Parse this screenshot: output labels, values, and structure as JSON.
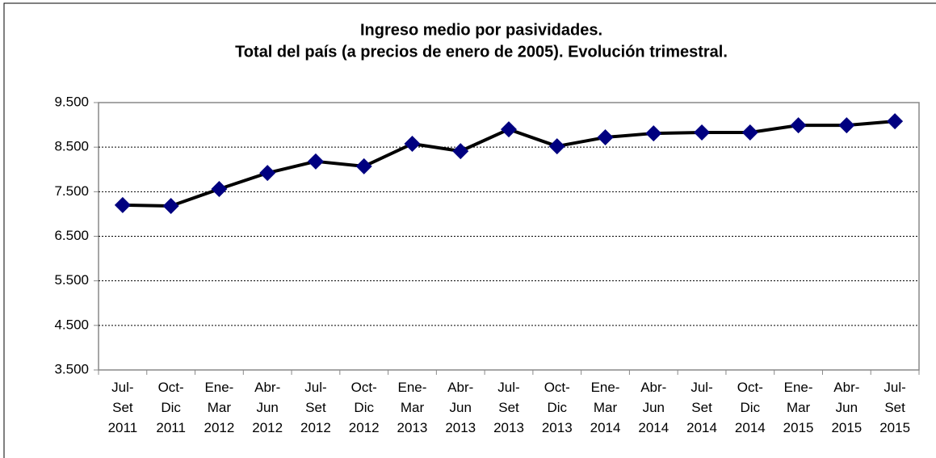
{
  "chart_data": {
    "type": "line",
    "title": [
      "Ingreso medio por pasividades.",
      "Total del país (a precios de enero de 2005). Evolución trimestral."
    ],
    "categories": [
      [
        "Jul-",
        "Set",
        "2011"
      ],
      [
        "Oct-",
        "Dic",
        "2011"
      ],
      [
        "Ene-",
        "Mar",
        "2012"
      ],
      [
        "Abr-",
        "Jun",
        "2012"
      ],
      [
        "Jul-",
        "Set",
        "2012"
      ],
      [
        "Oct-",
        "Dic",
        "2012"
      ],
      [
        "Ene-",
        "Mar",
        "2013"
      ],
      [
        "Abr-",
        "Jun",
        "2013"
      ],
      [
        "Jul-",
        "Set",
        "2013"
      ],
      [
        "Oct-",
        "Dic",
        "2013"
      ],
      [
        "Ene-",
        "Mar",
        "2014"
      ],
      [
        "Abr-",
        "Jun",
        "2014"
      ],
      [
        "Jul-",
        "Set",
        "2014"
      ],
      [
        "Oct-",
        "Dic",
        "2014"
      ],
      [
        "Ene-",
        "Mar",
        "2015"
      ],
      [
        "Abr-",
        "Jun",
        "2015"
      ],
      [
        "Jul-",
        "Set",
        "2015"
      ]
    ],
    "values": [
      7200,
      7180,
      7560,
      7920,
      8180,
      8070,
      8575,
      8410,
      8900,
      8520,
      8720,
      8810,
      8830,
      8830,
      8990,
      8990,
      9080
    ],
    "color": "#000000",
    "marker_color": "#000080",
    "ylim": [
      3500,
      9500
    ],
    "yticks": [
      {
        "value": 3500,
        "label": "3.500"
      },
      {
        "value": 4500,
        "label": "4.500"
      },
      {
        "value": 5500,
        "label": "5.500"
      },
      {
        "value": 6500,
        "label": "6.500"
      },
      {
        "value": 7500,
        "label": "7.500"
      },
      {
        "value": 8500,
        "label": "8.500"
      },
      {
        "value": 9500,
        "label": "9.500"
      }
    ],
    "grid": true
  }
}
